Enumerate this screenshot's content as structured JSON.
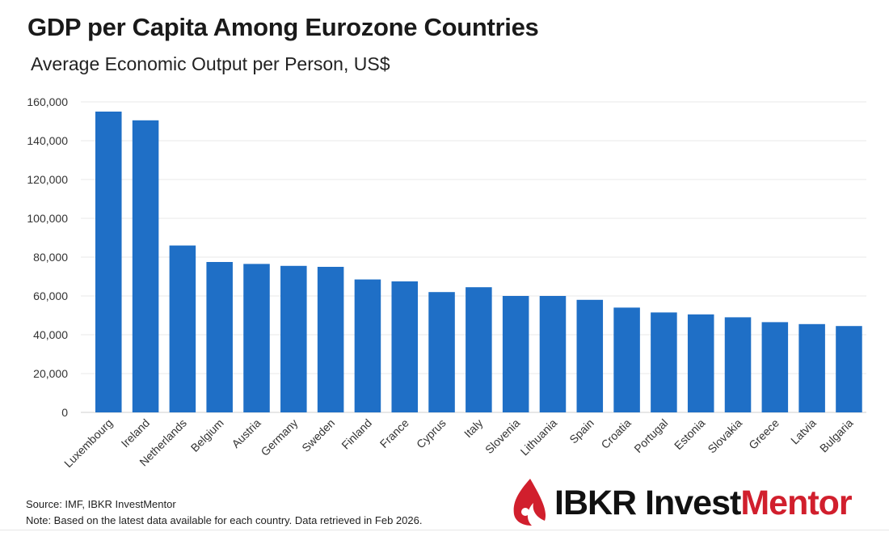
{
  "title": "GDP per Capita Among Eurozone Countries",
  "subtitle": "Average Economic Output per Person, US$",
  "footer": {
    "source": "Source: IMF, IBKR InvestMentor",
    "note": "Note: Based on the latest data available for each country. Data retrieved in Feb 2026."
  },
  "logo": {
    "part1": "IBKR Invest",
    "part2": "Mentor"
  },
  "colors": {
    "bar": "#1f6fc6",
    "grid": "#e8e8e8",
    "logo_red": "#d11f2d"
  },
  "chart_data": {
    "type": "bar",
    "categories": [
      "Luxembourg",
      "Ireland",
      "Netherlands",
      "Belgium",
      "Austria",
      "Germany",
      "Sweden",
      "Finland",
      "France",
      "Cyprus",
      "Italy",
      "Slovenia",
      "Lithuania",
      "Spain",
      "Croatia",
      "Portugal",
      "Estonia",
      "Slovakia",
      "Greece",
      "Latvia",
      "Bulgaria"
    ],
    "values": [
      155000,
      150500,
      86000,
      77500,
      76500,
      75500,
      75000,
      68500,
      67500,
      62000,
      64500,
      60000,
      60000,
      58000,
      54000,
      51500,
      50500,
      49000,
      46500,
      45500,
      44500
    ],
    "ylim": [
      0,
      160000
    ],
    "yticks": [
      0,
      20000,
      40000,
      60000,
      80000,
      100000,
      120000,
      140000,
      160000
    ],
    "ytick_labels": [
      "0",
      "20,000",
      "40,000",
      "60,000",
      "80,000",
      "100,000",
      "120,000",
      "140,000",
      "160,000"
    ],
    "grid": true,
    "xlabel": "",
    "ylabel": ""
  }
}
